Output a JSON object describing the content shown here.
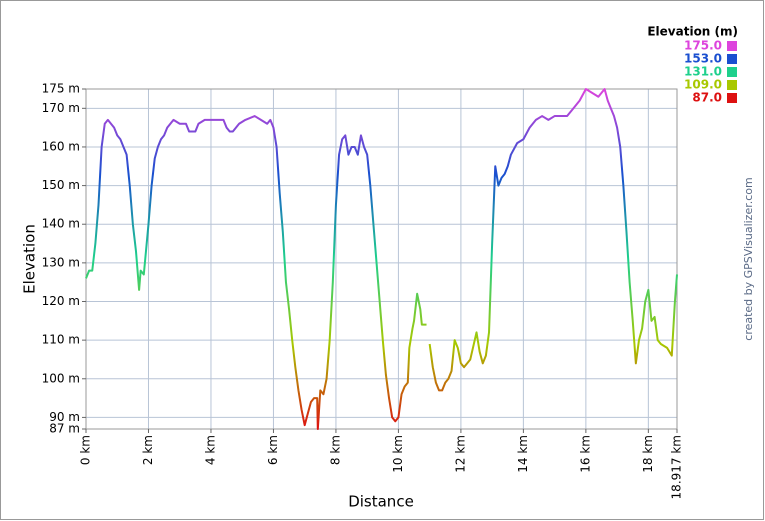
{
  "chart_data": {
    "type": "line",
    "x_label": "Distance",
    "y_label": "Elevation",
    "credit": "created by GPSVisualizer.com",
    "legend_title": "Elevation (m)",
    "color_scale": [
      {
        "value": 175,
        "label": "175.0",
        "color": "#dd44dd"
      },
      {
        "value": 153,
        "label": "153.0",
        "color": "#1a4fd0"
      },
      {
        "value": 131,
        "label": "131.0",
        "color": "#1ed08c"
      },
      {
        "value": 109,
        "label": "109.0",
        "color": "#a8c800"
      },
      {
        "value": 87,
        "label": "87.0",
        "color": "#dd1111"
      }
    ],
    "grid": true,
    "xlim": [
      0,
      18.917
    ],
    "ylim": [
      87,
      175
    ],
    "xticks": [
      {
        "value": 0,
        "label": "0 km"
      },
      {
        "value": 2,
        "label": "2 km"
      },
      {
        "value": 4,
        "label": "4 km"
      },
      {
        "value": 6,
        "label": "6 km"
      },
      {
        "value": 8,
        "label": "8 km"
      },
      {
        "value": 10,
        "label": "10 km"
      },
      {
        "value": 12,
        "label": "12 km"
      },
      {
        "value": 14,
        "label": "14 km"
      },
      {
        "value": 16,
        "label": "16 km"
      },
      {
        "value": 18,
        "label": "18 km"
      },
      {
        "value": 18.917,
        "label": "18.917 km"
      }
    ],
    "yticks": [
      {
        "value": 87,
        "label": "87 m"
      },
      {
        "value": 90,
        "label": "90 m"
      },
      {
        "value": 100,
        "label": "100 m"
      },
      {
        "value": 110,
        "label": "110 m"
      },
      {
        "value": 120,
        "label": "120 m"
      },
      {
        "value": 130,
        "label": "130 m"
      },
      {
        "value": 140,
        "label": "140 m"
      },
      {
        "value": 150,
        "label": "150 m"
      },
      {
        "value": 160,
        "label": "160 m"
      },
      {
        "value": 170,
        "label": "170 m"
      },
      {
        "value": 175,
        "label": "175 m"
      }
    ],
    "x": [
      0,
      0.1,
      0.2,
      0.3,
      0.4,
      0.5,
      0.6,
      0.7,
      0.8,
      0.9,
      1.0,
      1.1,
      1.2,
      1.3,
      1.4,
      1.5,
      1.6,
      1.7,
      1.75,
      1.85,
      2.0,
      2.1,
      2.2,
      2.3,
      2.4,
      2.5,
      2.6,
      2.8,
      3.0,
      3.2,
      3.3,
      3.5,
      3.6,
      3.8,
      4.0,
      4.2,
      4.4,
      4.5,
      4.6,
      4.7,
      4.9,
      5.1,
      5.4,
      5.6,
      5.8,
      5.9,
      6.0,
      6.1,
      6.2,
      6.3,
      6.4,
      6.5,
      6.6,
      6.7,
      6.8,
      6.9,
      7.0,
      7.1,
      7.2,
      7.3,
      7.4,
      7.42,
      7.5,
      7.6,
      7.7,
      7.8,
      7.9,
      8.0,
      8.1,
      8.2,
      8.3,
      8.4,
      8.5,
      8.6,
      8.7,
      8.8,
      8.9,
      9.0,
      9.1,
      9.2,
      9.3,
      9.4,
      9.5,
      9.6,
      9.7,
      9.8,
      9.9,
      10.0,
      10.1,
      10.2,
      10.3,
      10.35,
      10.45,
      10.5,
      10.6,
      10.7,
      10.75,
      10.9,
      10.95,
      11.0,
      11.1,
      11.2,
      11.3,
      11.4,
      11.5,
      11.6,
      11.7,
      11.8,
      11.9,
      12.0,
      12.1,
      12.2,
      12.3,
      12.5,
      12.6,
      12.7,
      12.8,
      12.9,
      13.0,
      13.1,
      13.2,
      13.3,
      13.4,
      13.5,
      13.6,
      13.8,
      14.0,
      14.2,
      14.4,
      14.6,
      14.8,
      15.0,
      15.2,
      15.4,
      15.6,
      15.8,
      16.0,
      16.2,
      16.4,
      16.6,
      16.7,
      16.8,
      16.9,
      17.0,
      17.1,
      17.2,
      17.3,
      17.4,
      17.5,
      17.6,
      17.7,
      17.8,
      17.9,
      18.0,
      18.1,
      18.2,
      18.3,
      18.4,
      18.6,
      18.75,
      18.85,
      18.917
    ],
    "values": [
      126,
      128,
      128,
      135,
      145,
      160,
      166,
      167,
      166,
      165,
      163,
      162,
      160,
      158,
      150,
      140,
      133,
      123,
      128,
      127,
      140,
      150,
      157,
      160,
      162,
      163,
      165,
      167,
      166,
      166,
      164,
      164,
      166,
      167,
      167,
      167,
      167,
      165,
      164,
      164,
      166,
      167,
      168,
      167,
      166,
      167,
      165,
      160,
      148,
      138,
      125,
      118,
      110,
      103,
      97,
      92,
      88,
      91,
      94,
      95,
      95,
      87,
      97,
      96,
      100,
      110,
      125,
      145,
      158,
      162,
      163,
      158,
      160,
      160,
      158,
      163,
      160,
      158,
      150,
      140,
      130,
      120,
      110,
      101,
      95,
      90,
      89,
      90,
      96,
      98,
      99,
      108,
      113,
      115,
      122,
      118,
      114,
      114,
      null,
      109,
      103,
      99,
      97,
      97,
      99,
      100,
      102,
      110,
      108,
      104,
      103,
      104,
      105,
      112,
      107,
      104,
      106,
      112,
      135,
      155,
      150,
      152,
      153,
      155,
      158,
      161,
      162,
      165,
      167,
      168,
      167,
      168,
      168,
      168,
      170,
      172,
      175,
      174,
      173,
      175,
      172,
      170,
      168,
      165,
      160,
      150,
      138,
      125,
      115,
      104,
      110,
      113,
      120,
      123,
      115,
      116,
      110,
      109,
      108,
      106,
      120,
      127
    ]
  }
}
